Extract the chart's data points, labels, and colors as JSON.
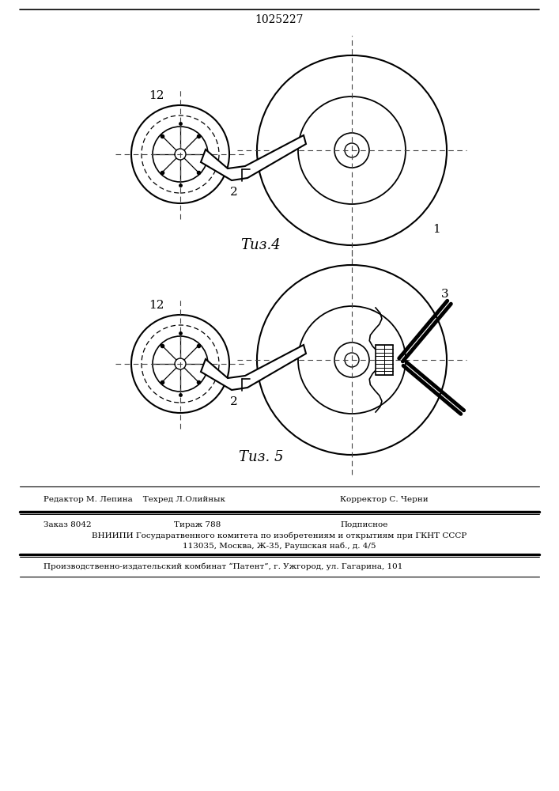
{
  "title": "1025227",
  "fig4_label": "Τиз.4",
  "fig5_label": "Τиз. 5",
  "label_1": "1",
  "label_2": "2",
  "label_3": "3",
  "label_12": "12",
  "editor_line": "Редактор М. Лепина    Техред Л.Олийнык",
  "corrector_line": "Корректор С. Черни",
  "order_line": "Заказ 8042",
  "tirazh_line": "Тираж 788",
  "podpis_line": "Подписное",
  "vniip_line": "ВНИИПИ Государатвенного комитета по изобретениям и открытиям при ГКНТ СССР",
  "address_line": "113035, Москва, Ж-35, Раушская наб., д. 4/5",
  "factory_line": "Производственно-издательский комбинат “Патент”, г. Ужгород, ул. Гагарина, 101",
  "bg_color": "#ffffff",
  "line_color": "#000000",
  "text_color": "#000000"
}
